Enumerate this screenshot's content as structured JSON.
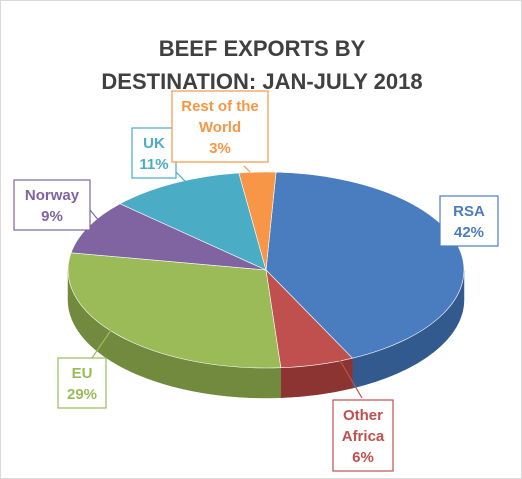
{
  "chart_data": {
    "type": "pie",
    "title": "BEEF EXPORTS BY DESTINATION: JAN-JULY 2018",
    "title_lines": [
      "BEEF EXPORTS BY",
      "DESTINATION: JAN-JULY 2018"
    ],
    "style": "3d",
    "legend": "none",
    "slices": [
      {
        "label": "RSA",
        "value": 42,
        "value_text": "42%",
        "label_lines": [
          "RSA",
          "42%"
        ],
        "color": "#4a7cc0",
        "dark": "#335a8f"
      },
      {
        "label": "Other Africa",
        "value": 6,
        "value_text": "6%",
        "label_lines": [
          "Other",
          "Africa",
          "6%"
        ],
        "color": "#c0504d",
        "dark": "#8c3432"
      },
      {
        "label": "EU",
        "value": 29,
        "value_text": "29%",
        "label_lines": [
          "EU",
          "29%"
        ],
        "color": "#9bbb59",
        "dark": "#718a3e"
      },
      {
        "label": "Norway",
        "value": 9,
        "value_text": "9%",
        "label_lines": [
          "Norway",
          "9%"
        ],
        "color": "#8064a2",
        "dark": "#5d4878"
      },
      {
        "label": "UK",
        "value": 11,
        "value_text": "11%",
        "label_lines": [
          "UK",
          "11%"
        ],
        "color": "#4bacc6",
        "dark": "#327d91"
      },
      {
        "label": "Rest of the World",
        "value": 3,
        "value_text": "3%",
        "label_lines": [
          "Rest of the",
          "World",
          "3%"
        ],
        "color": "#f79646",
        "dark": "#b86a2c"
      }
    ]
  }
}
